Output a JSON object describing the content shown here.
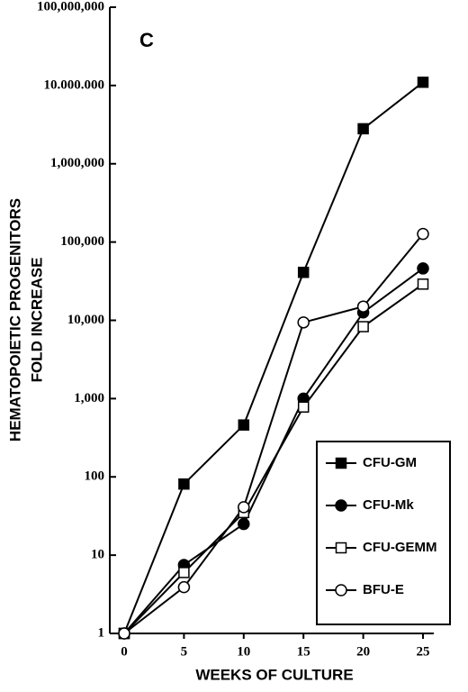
{
  "chart_data": {
    "type": "line",
    "title": "C",
    "x_label": "WEEKS OF CULTURE",
    "y_label": [
      "HEMATOPOIETIC PROGENITORS",
      "FOLD INCREASE"
    ],
    "x": [
      0,
      5,
      10,
      15,
      20,
      25
    ],
    "xlim": [
      0,
      25
    ],
    "xticks": [
      0,
      5,
      10,
      15,
      20,
      25
    ],
    "ylim": [
      1,
      100000000
    ],
    "log_y": true,
    "yticks": [
      1,
      10,
      100,
      {
        "value": 1000,
        "label": "1,000"
      },
      {
        "value": 10000,
        "label": "10,000"
      },
      {
        "value": 100000,
        "label": "100,000"
      },
      {
        "value": 1000000,
        "label": "1,000,000"
      },
      {
        "value": 10000000,
        "label": "10.000.000"
      },
      {
        "value": 100000000,
        "label": "100,000,000"
      }
    ],
    "legend": "lower right",
    "series": [
      {
        "name": "CFU-GM",
        "color": "#000000",
        "marker": "square",
        "marker_fill": "#000000",
        "values": [
          1,
          81,
          460,
          41000,
          2800000,
          11000000
        ]
      },
      {
        "name": "CFU-Mk",
        "color": "#000000",
        "marker": "circle",
        "marker_fill": "#000000",
        "values": [
          1,
          7.5,
          25,
          1000,
          12600,
          46000
        ]
      },
      {
        "name": "CFU-GEMM",
        "color": "#000000",
        "marker": "square",
        "marker_fill": "#ffffff",
        "values": [
          1,
          6,
          35,
          780,
          8300,
          29000
        ]
      },
      {
        "name": "BFU-E",
        "color": "#000000",
        "marker": "circle",
        "marker_fill": "#ffffff",
        "values": [
          1,
          3.9,
          41,
          9400,
          15000,
          127000
        ]
      }
    ]
  }
}
